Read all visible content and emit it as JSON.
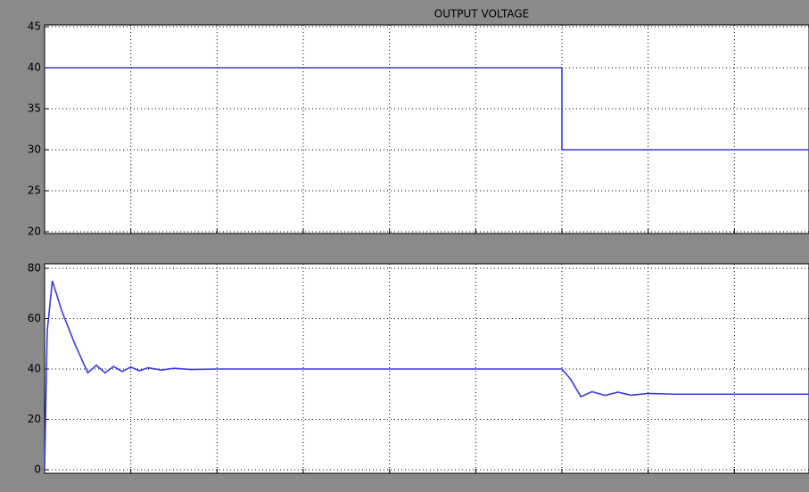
{
  "chart_data": [
    {
      "type": "line",
      "title": "OUTPUT VOLTAGE",
      "xlim": [
        0,
        9
      ],
      "xticks": [
        1,
        2,
        3,
        4,
        5,
        6,
        7,
        8
      ],
      "ylim": [
        20,
        45
      ],
      "yticks": [
        20,
        25,
        30,
        35,
        40,
        45
      ],
      "grid": true,
      "series": [
        {
          "color": "#3a3ae0",
          "x": [
            0,
            6,
            6,
            9
          ],
          "values": [
            40,
            40,
            30,
            30
          ]
        }
      ]
    },
    {
      "type": "line",
      "xlim": [
        0,
        9
      ],
      "xticks": [
        1,
        2,
        3,
        4,
        5,
        6,
        7,
        8
      ],
      "ylim": [
        0,
        80
      ],
      "yticks": [
        0,
        20,
        40,
        60,
        80
      ],
      "grid": true,
      "series": [
        {
          "color": "#3a3ae0",
          "x": [
            0,
            0.03,
            0.09,
            0.2,
            0.35,
            0.5,
            0.6,
            0.7,
            0.8,
            0.9,
            1.0,
            1.1,
            1.2,
            1.35,
            1.5,
            1.7,
            2.0,
            6.0,
            6.1,
            6.22,
            6.35,
            6.5,
            6.65,
            6.8,
            7.0,
            7.3,
            9
          ],
          "values": [
            0,
            55,
            75,
            63,
            50,
            38.5,
            41.5,
            38.5,
            41,
            39,
            40.8,
            39.3,
            40.5,
            39.6,
            40.3,
            39.8,
            40,
            40,
            36,
            29,
            31,
            29.5,
            30.8,
            29.6,
            30.3,
            30,
            30
          ]
        }
      ]
    }
  ]
}
